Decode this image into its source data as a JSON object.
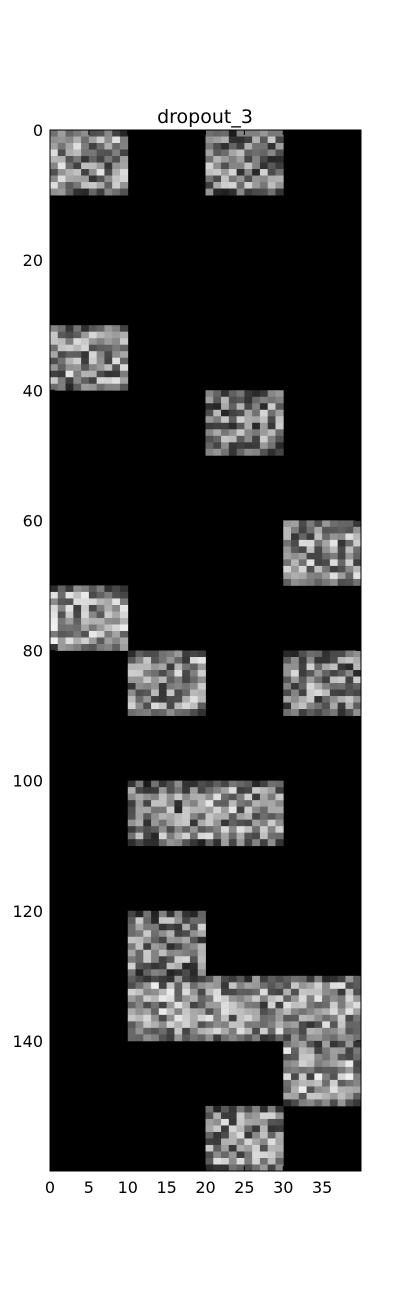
{
  "chart_data": {
    "type": "heatmap",
    "title": "dropout_3",
    "xlabel": "",
    "ylabel": "",
    "colormap": "gray",
    "background_color": "#000000",
    "grid": false,
    "shape": {
      "rows": 160,
      "cols": 40
    },
    "xlim": [
      0,
      40
    ],
    "ylim": [
      160,
      0
    ],
    "x_ticks": [
      0,
      5,
      10,
      15,
      20,
      25,
      30,
      35
    ],
    "x_tick_labels": [
      "0",
      "5",
      "10",
      "15",
      "20",
      "25",
      "30",
      "35"
    ],
    "y_ticks": [
      0,
      20,
      40,
      60,
      80,
      100,
      120,
      140
    ],
    "y_tick_labels": [
      "0",
      "20",
      "40",
      "60",
      "80",
      "100",
      "120",
      "140"
    ],
    "tile_size": {
      "rows": 10,
      "cols": 10
    },
    "active_tiles": [
      {
        "row": 0,
        "col": 0,
        "mean_intensity": 0.55
      },
      {
        "row": 0,
        "col": 20,
        "mean_intensity": 0.5
      },
      {
        "row": 30,
        "col": 0,
        "mean_intensity": 0.55
      },
      {
        "row": 40,
        "col": 20,
        "mean_intensity": 0.5
      },
      {
        "row": 60,
        "col": 30,
        "mean_intensity": 0.55
      },
      {
        "row": 70,
        "col": 0,
        "mean_intensity": 0.6
      },
      {
        "row": 80,
        "col": 10,
        "mean_intensity": 0.55
      },
      {
        "row": 80,
        "col": 30,
        "mean_intensity": 0.5
      },
      {
        "row": 100,
        "col": 10,
        "mean_intensity": 0.5
      },
      {
        "row": 100,
        "col": 20,
        "mean_intensity": 0.55
      },
      {
        "row": 120,
        "col": 10,
        "mean_intensity": 0.5
      },
      {
        "row": 130,
        "col": 10,
        "mean_intensity": 0.6
      },
      {
        "row": 130,
        "col": 20,
        "mean_intensity": 0.55
      },
      {
        "row": 130,
        "col": 30,
        "mean_intensity": 0.55
      },
      {
        "row": 140,
        "col": 30,
        "mean_intensity": 0.6
      },
      {
        "row": 150,
        "col": 20,
        "mean_intensity": 0.55
      }
    ]
  }
}
